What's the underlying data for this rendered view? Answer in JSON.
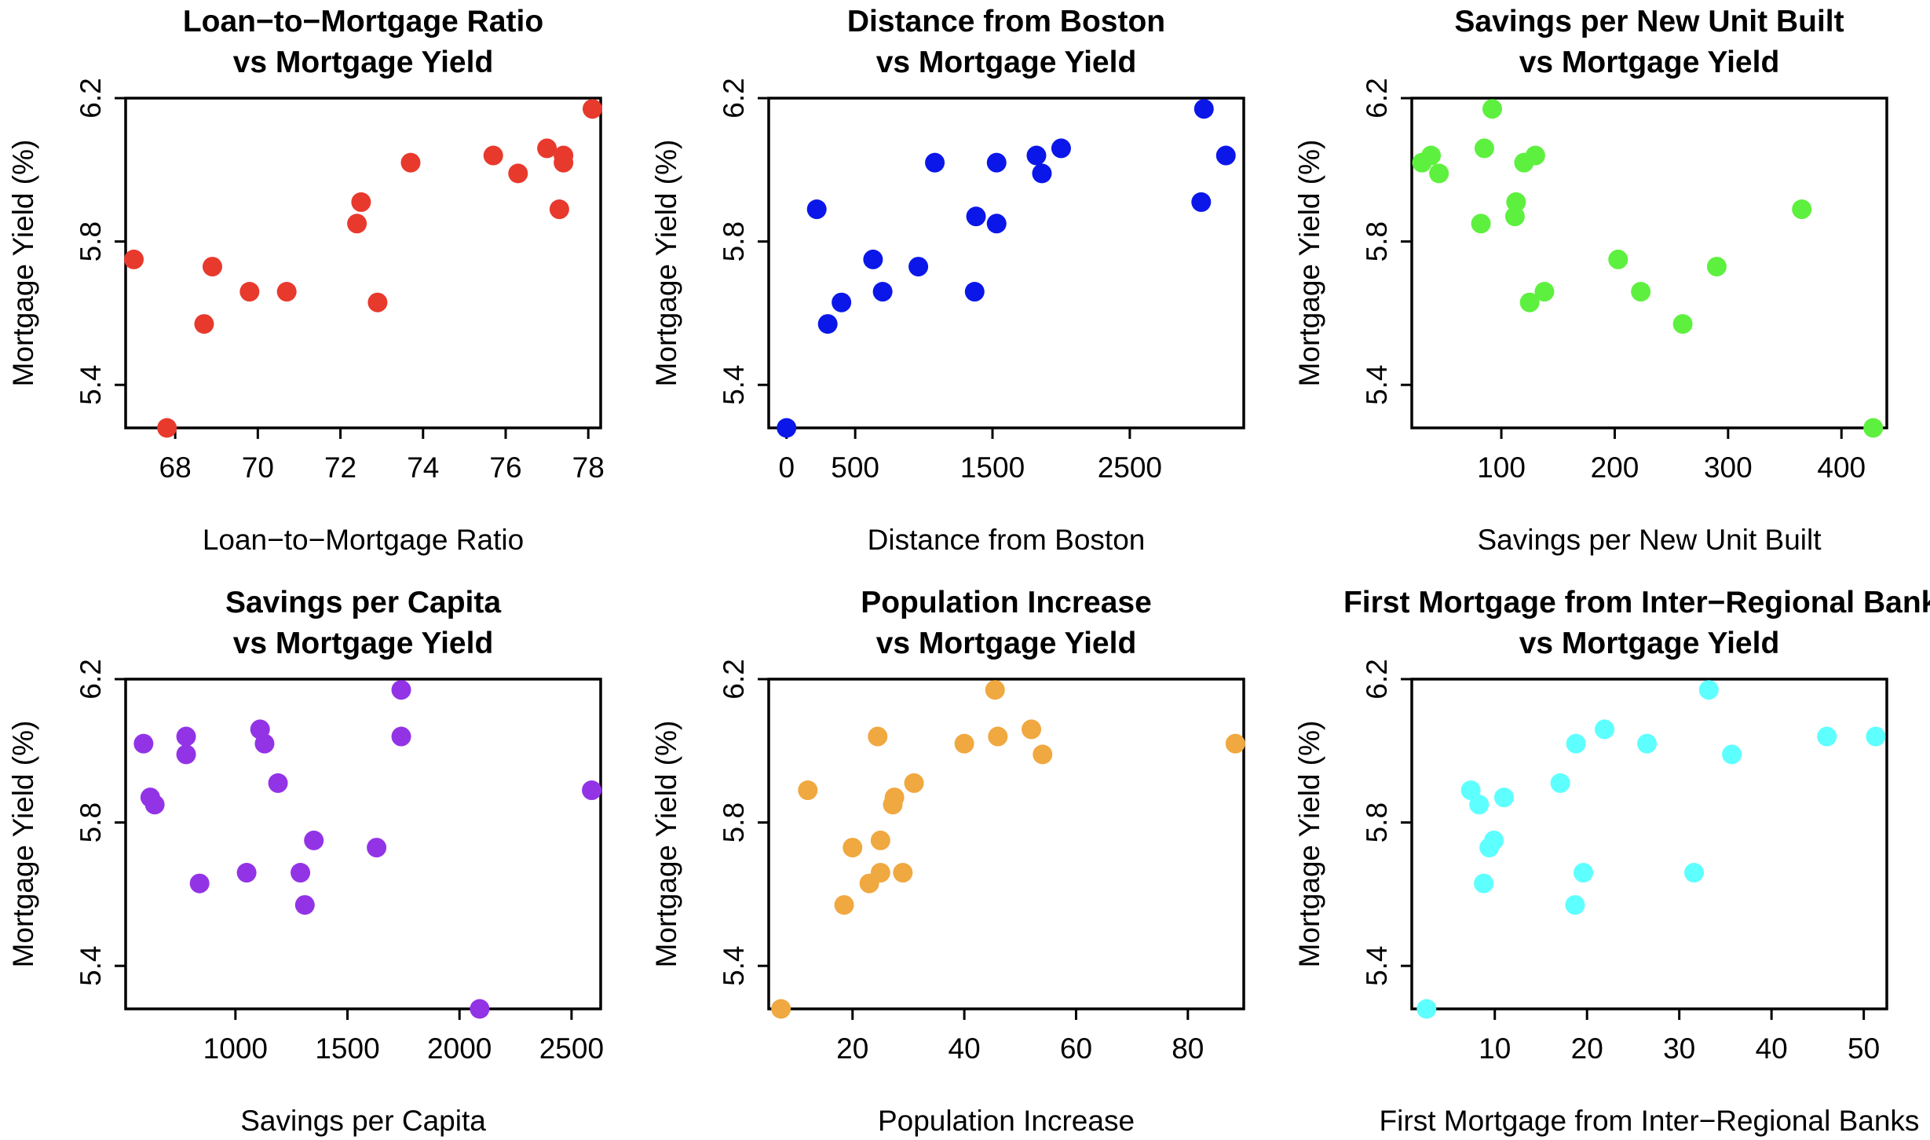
{
  "chart_data": [
    {
      "type": "scatter",
      "title": [
        "Loan−to−Mortgage Ratio",
        "vs Mortgage Yield"
      ],
      "xlabel": "Loan−to−Mortgage Ratio",
      "ylabel": "Mortgage Yield (%)",
      "xlim": [
        66.8,
        78.3
      ],
      "ylim": [
        5.28,
        6.2
      ],
      "xticks": [
        68,
        70,
        72,
        74,
        76,
        78
      ],
      "yticks": [
        5.4,
        5.8,
        6.2
      ],
      "color": "#E8392D",
      "grid": false,
      "x": [
        78.1,
        77.0,
        75.7,
        77.4,
        77.4,
        73.7,
        76.3,
        72.5,
        77.3,
        72.4,
        67.0,
        68.9,
        69.8,
        70.7,
        72.9,
        68.7,
        67.8
      ],
      "y": [
        6.17,
        6.06,
        6.04,
        6.04,
        6.02,
        6.02,
        5.99,
        5.91,
        5.89,
        5.85,
        5.75,
        5.73,
        5.66,
        5.66,
        5.63,
        5.57,
        5.28
      ]
    },
    {
      "type": "scatter",
      "title": [
        "Distance from Boston",
        "vs Mortgage Yield"
      ],
      "xlabel": "Distance from Boston",
      "ylabel": "Mortgage Yield (%)",
      "xlim": [
        -130,
        3330
      ],
      "ylim": [
        5.28,
        6.2
      ],
      "xticks": [
        0,
        500,
        1500,
        2500
      ],
      "xtick_labels": [
        "0",
        "500",
        "1500",
        "2500"
      ],
      "yticks": [
        5.4,
        5.8,
        6.2
      ],
      "color": "#0B17E8",
      "grid": false,
      "x": [
        3040,
        2000,
        1820,
        3200,
        1530,
        1080,
        1860,
        3020,
        220,
        1380,
        1530,
        630,
        960,
        700,
        1370,
        400,
        300,
        0
      ],
      "y": [
        6.17,
        6.06,
        6.04,
        6.04,
        6.02,
        6.02,
        5.99,
        5.91,
        5.89,
        5.87,
        5.85,
        5.75,
        5.73,
        5.66,
        5.66,
        5.63,
        5.57,
        5.28
      ]
    },
    {
      "type": "scatter",
      "title": [
        "Savings per New Unit Built",
        "vs Mortgage Yield"
      ],
      "xlabel": "Savings per New Unit Built",
      "ylabel": "Mortgage Yield (%)",
      "xlim": [
        21,
        440
      ],
      "ylim": [
        5.28,
        6.2
      ],
      "xticks": [
        100,
        200,
        300,
        400
      ],
      "yticks": [
        5.4,
        5.8,
        6.2
      ],
      "color": "#5EF03F",
      "grid": false,
      "x": [
        92,
        85,
        38,
        130,
        30,
        120,
        45,
        113,
        365,
        112,
        82,
        203,
        290,
        138,
        223,
        125,
        260,
        428
      ],
      "y": [
        6.17,
        6.06,
        6.04,
        6.04,
        6.02,
        6.02,
        5.99,
        5.91,
        5.89,
        5.87,
        5.85,
        5.75,
        5.73,
        5.66,
        5.66,
        5.63,
        5.57,
        5.28
      ]
    },
    {
      "type": "scatter",
      "title": [
        "Savings per Capita",
        "vs Mortgage Yield"
      ],
      "xlabel": "Savings per Capita",
      "ylabel": "Mortgage Yield (%)",
      "xlim": [
        510,
        2630
      ],
      "ylim": [
        5.28,
        6.2
      ],
      "xticks": [
        1000,
        1500,
        2000,
        2500
      ],
      "yticks": [
        5.4,
        5.8,
        6.2
      ],
      "color": "#9333E6",
      "grid": false,
      "x": [
        1740,
        1110,
        780,
        1740,
        590,
        1130,
        780,
        1190,
        2590,
        620,
        640,
        1350,
        1630,
        1050,
        1290,
        840,
        1310,
        2090
      ],
      "y": [
        6.17,
        6.06,
        6.04,
        6.04,
        6.02,
        6.02,
        5.99,
        5.91,
        5.89,
        5.87,
        5.85,
        5.75,
        5.73,
        5.66,
        5.66,
        5.63,
        5.57,
        5.28
      ]
    },
    {
      "type": "scatter",
      "title": [
        "Population Increase",
        "vs Mortgage Yield"
      ],
      "xlabel": "Population Increase",
      "ylabel": "Mortgage Yield (%)",
      "xlim": [
        5,
        90
      ],
      "ylim": [
        5.28,
        6.2
      ],
      "xticks": [
        20,
        40,
        60,
        80
      ],
      "yticks": [
        5.4,
        5.8,
        6.2
      ],
      "color": "#F0A840",
      "grid": false,
      "x": [
        45.5,
        52,
        24.5,
        46,
        88.5,
        40,
        54,
        31,
        12,
        27.5,
        27.2,
        25,
        20,
        29,
        25,
        23,
        18.5,
        7.2
      ],
      "y": [
        6.17,
        6.06,
        6.04,
        6.04,
        6.02,
        6.02,
        5.99,
        5.91,
        5.89,
        5.87,
        5.85,
        5.75,
        5.73,
        5.66,
        5.66,
        5.63,
        5.57,
        5.28
      ]
    },
    {
      "type": "scatter",
      "title": [
        "First Mortgage from Inter−Regional Banks",
        "vs Mortgage Yield"
      ],
      "xlabel": "First Mortgage from Inter−Regional Banks",
      "ylabel": "Mortgage Yield (%)",
      "xlim": [
        1,
        52.5
      ],
      "ylim": [
        5.28,
        6.2
      ],
      "xticks": [
        10,
        20,
        30,
        40,
        50
      ],
      "yticks": [
        5.4,
        5.8,
        6.2
      ],
      "color": "#5EFFFF",
      "grid": false,
      "x": [
        33.2,
        21.9,
        46,
        51.3,
        26.5,
        18.8,
        35.7,
        17.1,
        7.4,
        11,
        8.3,
        9.9,
        9.4,
        19.6,
        31.6,
        8.8,
        18.7,
        2.6
      ],
      "y": [
        6.17,
        6.06,
        6.04,
        6.04,
        6.02,
        6.02,
        5.99,
        5.91,
        5.89,
        5.87,
        5.85,
        5.75,
        5.73,
        5.66,
        5.66,
        5.63,
        5.57,
        5.28
      ]
    }
  ]
}
